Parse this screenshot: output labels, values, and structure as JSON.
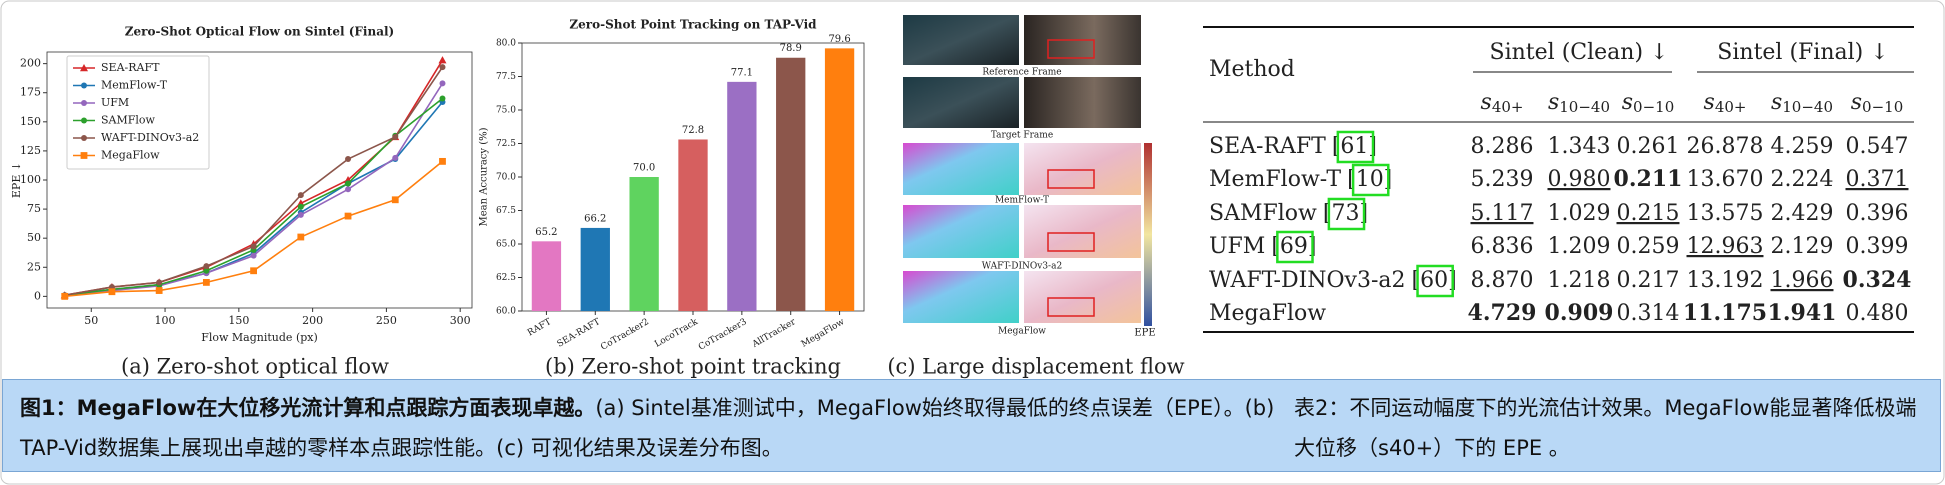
{
  "chart_data": [
    {
      "type": "line",
      "title": "Zero-Shot Optical Flow on Sintel (Final)",
      "xlabel": "Flow Magnitude (px)",
      "ylabel": "EPE ↓",
      "x": [
        32,
        64,
        96,
        128,
        160,
        192,
        224,
        256,
        288
      ],
      "xlim": [
        20,
        308
      ],
      "xticks": [
        50,
        100,
        150,
        200,
        250,
        300
      ],
      "ylim": [
        -10,
        210
      ],
      "yticks": [
        0,
        25,
        50,
        75,
        100,
        125,
        150,
        175,
        200
      ],
      "legend": "upper left",
      "series": [
        {
          "name": "SEA-RAFT",
          "color": "#d62728",
          "marker": "triangle",
          "values": [
            1,
            8,
            12,
            25,
            45,
            80,
            100,
            137,
            203
          ]
        },
        {
          "name": "MemFlow-T",
          "color": "#1f77b4",
          "marker": "circle",
          "values": [
            1,
            6,
            10,
            20,
            37,
            72,
            97,
            118,
            167
          ]
        },
        {
          "name": "UFM",
          "color": "#9467bd",
          "marker": "circle",
          "values": [
            1,
            5,
            9,
            20,
            35,
            70,
            92,
            119,
            183
          ]
        },
        {
          "name": "SAMFlow",
          "color": "#2ca02c",
          "marker": "circle",
          "values": [
            1,
            6,
            10,
            22,
            40,
            77,
            97,
            138,
            170
          ]
        },
        {
          "name": "WAFT-DINOv3-a2",
          "color": "#8c564b",
          "marker": "circle",
          "values": [
            1,
            8,
            12,
            26,
            43,
            87,
            118,
            137,
            197
          ]
        },
        {
          "name": "MegaFlow",
          "color": "#ff7f0e",
          "marker": "square",
          "values": [
            0,
            4,
            5,
            12,
            22,
            51,
            69,
            83,
            116
          ]
        }
      ]
    },
    {
      "type": "bar",
      "title": "Zero-Shot Point Tracking on TAP-Vid",
      "ylabel": "Mean Accuracy (%)",
      "categories": [
        "RAFT",
        "SEA-RAFT",
        "CoTracker2",
        "LocoTrack",
        "CoTracker3",
        "AllTracker",
        "MegaFlow"
      ],
      "values": [
        65.2,
        66.2,
        70.0,
        72.8,
        77.1,
        78.9,
        79.6
      ],
      "value_labels": [
        "65.2",
        "66.2",
        "70.0",
        "72.8",
        "77.1",
        "78.9",
        "79.6"
      ],
      "colors": [
        "#e377c2",
        "#1f77b4",
        "#5fd35f",
        "#d65f5f",
        "#9b6fc4",
        "#8c564b",
        "#ff7f0e"
      ],
      "ylim": [
        60,
        80
      ],
      "yticks": [
        {
          "value": 60,
          "label": "60.0"
        },
        62.5,
        {
          "value": 65,
          "label": "65.0"
        },
        67.5,
        {
          "value": 70,
          "label": "70.0"
        },
        72.5,
        {
          "value": 75,
          "label": "75.0"
        },
        77.5,
        {
          "value": 80,
          "label": "80.0"
        }
      ]
    }
  ],
  "subcaptions": [
    "(a) Zero-shot optical flow",
    "(b) Zero-shot point tracking",
    "(c) Large displacement flow"
  ],
  "panel_c": {
    "labels": [
      "Reference Frame",
      "Target Frame",
      "MemFlow-T",
      "WAFT-DINOv3-a2",
      "MegaFlow"
    ],
    "colorbar_label": "EPE"
  },
  "table": {
    "method_header": "Method",
    "groups": [
      "Sintel (Clean) ↓",
      "Sintel (Final) ↓"
    ],
    "columns": [
      {
        "symbol": "s",
        "sub": "40+"
      },
      {
        "symbol": "s",
        "sub": "10−40"
      },
      {
        "symbol": "s",
        "sub": "0−10"
      }
    ],
    "rows": [
      {
        "method": "SEA-RAFT",
        "ref": "[61]",
        "values": [
          "8.286",
          "1.343",
          "0.261",
          "26.878",
          "4.259",
          "0.547"
        ],
        "bold": [],
        "underline": []
      },
      {
        "method": "MemFlow-T",
        "ref": "[10]",
        "values": [
          "5.239",
          "0.980",
          "0.211",
          "13.670",
          "2.224",
          "0.371"
        ],
        "bold": [
          2
        ],
        "underline": [
          1,
          5
        ]
      },
      {
        "method": "SAMFlow",
        "ref": "[73]",
        "values": [
          "5.117",
          "1.029",
          "0.215",
          "13.575",
          "2.429",
          "0.396"
        ],
        "bold": [],
        "underline": [
          0,
          2
        ]
      },
      {
        "method": "UFM",
        "ref": "[69]",
        "values": [
          "6.836",
          "1.209",
          "0.259",
          "12.963",
          "2.129",
          "0.399"
        ],
        "bold": [],
        "underline": [
          3
        ]
      },
      {
        "method": "WAFT-DINOv3-a2",
        "ref": "[60]",
        "values": [
          "8.870",
          "1.218",
          "0.217",
          "13.192",
          "1.966",
          "0.324"
        ],
        "bold": [
          5
        ],
        "underline": [
          4
        ]
      },
      {
        "method": "MegaFlow",
        "ref": null,
        "values": [
          "4.729",
          "0.909",
          "0.314",
          "11.175",
          "1.941",
          "0.480"
        ],
        "bold": [
          0,
          1,
          3,
          4
        ],
        "underline": []
      }
    ]
  },
  "caption": {
    "left_bold": "图1：MegaFlow在大位移光流计算和点跟踪方面表现卓越。",
    "left": "(a) Sintel基准测试中，MegaFlow始终取得最低的终点误差（EPE）。(b) TAP-Vid数据集上展现出卓越的零样本点跟踪性能。(c) 可视化结果及误差分布图。",
    "right": "表2：不同运动幅度下的光流估计效果。MegaFlow能显著降低极端大位移（s40+）下的 EPE 。"
  }
}
